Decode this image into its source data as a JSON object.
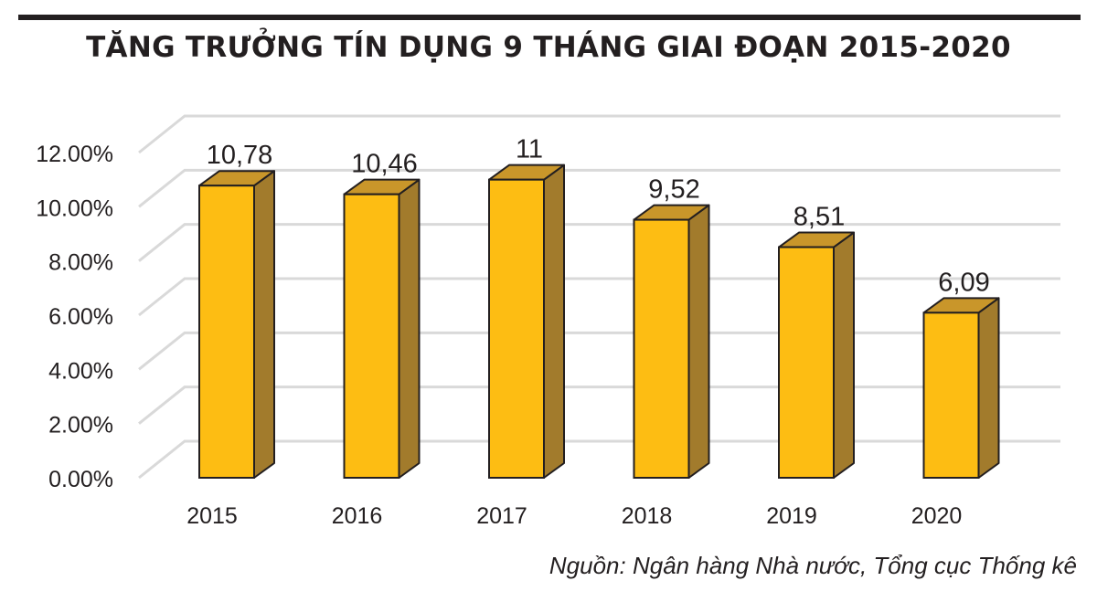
{
  "title": "TĂNG TRƯỞNG TÍN DỤNG 9 THÁNG GIAI ĐOẠN 2015-2020",
  "source": "Nguồn: Ngân hàng Nhà nước, Tổng cục Thống kê",
  "colors": {
    "bar_front": "#fdbd13",
    "bar_side": "#a27b2c",
    "bar_top": "#c9962a",
    "grid": "#d9d9d9",
    "text": "#231f20"
  },
  "chart_data": {
    "type": "bar",
    "title": "TĂNG TRƯỞNG TÍN DỤNG 9 THÁNG GIAI ĐOẠN 2015-2020",
    "categories": [
      "2015",
      "2016",
      "2017",
      "2018",
      "2019",
      "2020"
    ],
    "values": [
      10.78,
      10.46,
      11,
      9.52,
      8.51,
      6.09
    ],
    "data_labels": [
      "10,78",
      "10,46",
      "11",
      "9,52",
      "8,51",
      "6,09"
    ],
    "yticks": [
      "0.00%",
      "2.00%",
      "4.00%",
      "6.00%",
      "8.00%",
      "10.00%",
      "12.00%"
    ],
    "ylim": [
      0,
      12
    ],
    "xlabel": "",
    "ylabel": "",
    "grid": true,
    "legend": "none",
    "style": "3d-bar"
  }
}
